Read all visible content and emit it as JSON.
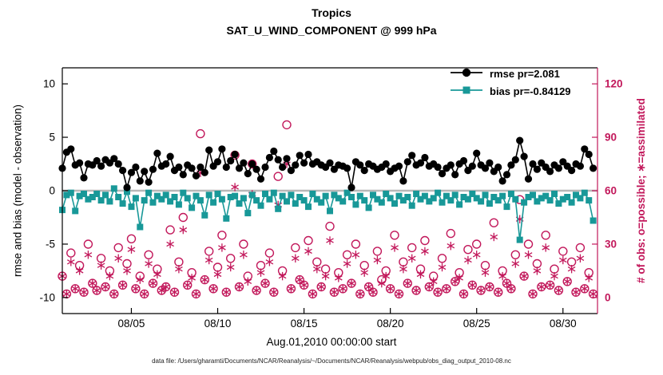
{
  "figure": {
    "title1": "Tropics",
    "title2": "SAT_U_WIND_COMPONENT @ 999 hPa",
    "caption": "data file: /Users/gharamti/Documents/NCAR/Reanalysis/~/Documents/NCAR/Reanalysis/webpub/obs_diag_output_2010-08.nc",
    "colors": {
      "rmse": "#000000",
      "bias": "#189898",
      "obs": "#c2185b",
      "zero_line": "#b8b8b8",
      "axis": "#000000"
    }
  },
  "chart_data": {
    "type": "line",
    "title": "Tropics",
    "subtitle": "SAT_U_WIND_COMPONENT @ 999 hPa",
    "xlabel": "Aug.01,2010 00:00:00 start",
    "ylabel_left": "rmse and bias (model - observation)",
    "ylabel_right": "# of obs: o=possible; ∗=assimilated",
    "x_domain": [
      1,
      32
    ],
    "x_ticks": [
      {
        "day": 5,
        "label": "08/05"
      },
      {
        "day": 10,
        "label": "08/10"
      },
      {
        "day": 15,
        "label": "08/15"
      },
      {
        "day": 20,
        "label": "08/20"
      },
      {
        "day": 25,
        "label": "08/25"
      },
      {
        "day": 30,
        "label": "08/30"
      }
    ],
    "ylim_left": [
      -11.5,
      11.5
    ],
    "yticks_left": [
      -10,
      -5,
      0,
      5,
      10
    ],
    "ylim_right": [
      -9,
      129
    ],
    "yticks_right": [
      0,
      30,
      60,
      90,
      120
    ],
    "grid": false,
    "zero_line": 0,
    "legend_position": "top-right-inside",
    "legend": [
      {
        "series": "rmse",
        "marker": "circle",
        "label": "rmse pr=2.081"
      },
      {
        "series": "bias",
        "marker": "square",
        "label": "bias pr=-0.84129"
      }
    ],
    "stats": {
      "rmse_prior_mean": 2.081,
      "bias_prior_mean": -0.84129
    },
    "time": {
      "start_day": 1,
      "step_days": 0.25,
      "count": 124
    },
    "series": {
      "rmse": [
        2.1,
        3.6,
        3.9,
        2.4,
        2.6,
        1.2,
        2.5,
        2.4,
        2.8,
        2.3,
        2.9,
        2.6,
        3.0,
        2.5,
        1.9,
        0.3,
        1.7,
        2.2,
        0.9,
        1.8,
        0.8,
        2.0,
        3.5,
        2.3,
        2.5,
        3.2,
        1.9,
        2.2,
        1.5,
        2.4,
        2.1,
        1.4,
        2.2,
        1.7,
        3.8,
        2.3,
        2.7,
        3.9,
        2.2,
        2.8,
        3.4,
        2.1,
        2.6,
        1.6,
        2.5,
        2.0,
        1.1,
        2.2,
        3.1,
        3.7,
        2.9,
        2.2,
        3.0,
        1.9,
        2.4,
        3.3,
        2.6,
        3.4,
        2.5,
        2.7,
        2.4,
        2.2,
        2.6,
        2.0,
        2.4,
        2.3,
        2.1,
        0.3,
        2.7,
        2.4,
        1.9,
        2.5,
        2.3,
        2.0,
        2.2,
        2.5,
        1.8,
        2.1,
        2.3,
        0.9,
        2.7,
        3.3,
        2.4,
        2.6,
        3.1,
        2.3,
        2.5,
        2.2,
        1.6,
        2.1,
        2.4,
        1.5,
        2.5,
        2.8,
        1.9,
        2.3,
        3.5,
        2.4,
        2.1,
        2.6,
        1.8,
        2.2,
        0.9,
        1.5,
        2.4,
        2.9,
        4.7,
        3.2,
        1.1,
        2.5,
        2.0,
        2.6,
        2.2,
        1.8,
        2.4,
        2.1,
        2.7,
        2.3,
        1.9,
        2.5,
        2.3,
        3.9,
        3.4,
        2.1
      ],
      "bias": [
        -1.8,
        -0.4,
        -0.2,
        -1.9,
        -0.5,
        -0.3,
        -0.8,
        -0.6,
        -0.3,
        -0.9,
        -0.4,
        -1.0,
        0.2,
        -0.6,
        -1.2,
        -0.1,
        -1.5,
        -0.7,
        -3.4,
        -0.9,
        -0.2,
        -1.1,
        -0.5,
        -0.8,
        -0.4,
        -1.0,
        -0.6,
        -1.3,
        -0.2,
        -0.7,
        -1.6,
        -0.5,
        -0.9,
        -2.3,
        -0.4,
        -1.1,
        -0.3,
        -0.8,
        -2.6,
        -0.6,
        -0.5,
        -1.2,
        -0.7,
        -2.1,
        -0.4,
        -0.9,
        -1.4,
        -0.3,
        -0.8,
        -0.2,
        -1.7,
        -0.5,
        -1.0,
        -0.4,
        -1.2,
        -0.6,
        -0.9,
        -1.5,
        -0.3,
        -0.8,
        -1.1,
        -0.5,
        -1.9,
        -0.4,
        -0.7,
        -1.0,
        -0.2,
        -0.6,
        -1.3,
        -0.5,
        -0.9,
        -1.6,
        -0.4,
        -0.8,
        -1.1,
        -0.3,
        -0.7,
        -1.2,
        -0.5,
        -0.9,
        -0.6,
        -1.4,
        -0.3,
        -0.8,
        -0.5,
        -1.0,
        -0.7,
        -0.2,
        -1.1,
        -0.5,
        -0.9,
        -0.4,
        -1.3,
        -0.6,
        -0.8,
        -0.3,
        -0.7,
        -1.0,
        -0.4,
        -1.2,
        -0.6,
        -0.9,
        -0.5,
        -1.5,
        -0.3,
        -0.8,
        -4.6,
        -1.1,
        -0.6,
        -0.4,
        -1.0,
        -0.7,
        -0.5,
        -0.9,
        -0.3,
        -1.2,
        -0.8,
        -0.6,
        -1.1,
        -0.4,
        -0.7,
        -0.2,
        -0.9,
        -2.8
      ],
      "obs_possible": [
        12,
        2,
        25,
        5,
        18,
        3,
        30,
        8,
        4,
        22,
        6,
        15,
        2,
        28,
        7,
        19,
        33,
        5,
        12,
        2,
        24,
        8,
        16,
        4,
        6,
        38,
        3,
        20,
        45,
        7,
        14,
        2,
        92,
        10,
        26,
        5,
        17,
        35,
        3,
        22,
        80,
        6,
        30,
        12,
        75,
        4,
        18,
        8,
        25,
        3,
        68,
        15,
        97,
        5,
        28,
        10,
        7,
        32,
        2,
        20,
        6,
        16,
        40,
        3,
        14,
        5,
        24,
        8,
        30,
        2,
        18,
        6,
        3,
        26,
        10,
        15,
        5,
        35,
        2,
        20,
        8,
        28,
        4,
        16,
        32,
        6,
        12,
        3,
        22,
        5,
        36,
        9,
        14,
        2,
        27,
        7,
        30,
        4,
        18,
        6,
        42,
        3,
        15,
        8,
        5,
        24,
        55,
        12,
        30,
        2,
        19,
        6,
        35,
        7,
        16,
        4,
        26,
        9,
        20,
        3,
        28,
        5,
        14,
        2
      ],
      "obs_assimilated": [
        12,
        2,
        20,
        5,
        15,
        3,
        24,
        8,
        4,
        18,
        6,
        12,
        2,
        22,
        7,
        15,
        27,
        5,
        10,
        2,
        19,
        8,
        13,
        4,
        6,
        30,
        3,
        16,
        38,
        7,
        11,
        2,
        70,
        10,
        21,
        5,
        13,
        28,
        3,
        17,
        62,
        6,
        24,
        9,
        58,
        4,
        14,
        8,
        20,
        3,
        52,
        12,
        75,
        5,
        22,
        10,
        7,
        26,
        2,
        16,
        6,
        12,
        32,
        3,
        11,
        5,
        19,
        8,
        24,
        2,
        14,
        6,
        3,
        21,
        8,
        12,
        5,
        28,
        2,
        16,
        8,
        22,
        4,
        13,
        26,
        6,
        9,
        3,
        17,
        5,
        29,
        9,
        11,
        2,
        21,
        7,
        24,
        4,
        14,
        6,
        34,
        3,
        12,
        8,
        5,
        19,
        44,
        12,
        24,
        2,
        15,
        6,
        28,
        7,
        12,
        4,
        21,
        9,
        16,
        3,
        22,
        5,
        11,
        2
      ]
    }
  }
}
